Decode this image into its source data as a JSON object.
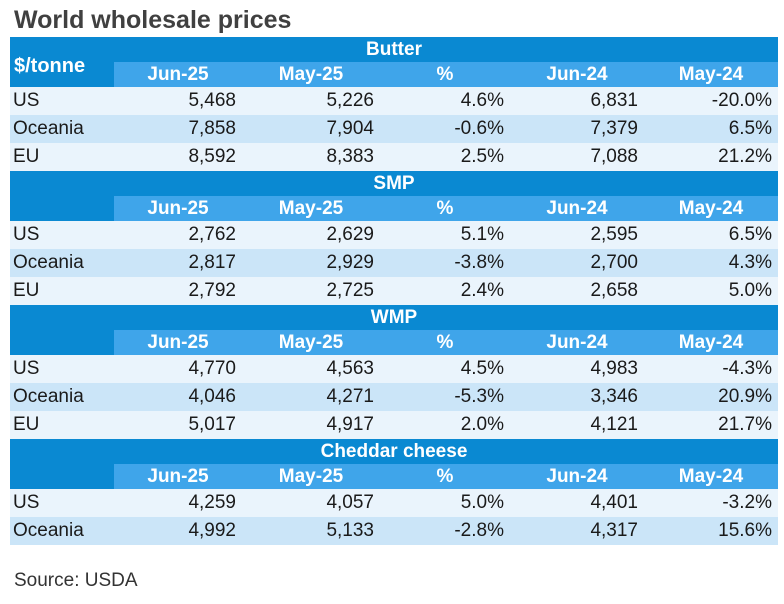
{
  "title": "World wholesale prices",
  "unit_label": "$/tonne",
  "columns": [
    "Jun-25",
    "May-25",
    "%",
    "Jun-24",
    "May-24"
  ],
  "sections": [
    {
      "name": "Butter",
      "rows": [
        {
          "region": "US",
          "values": [
            "5,468",
            "5,226",
            "4.6%",
            "6,831",
            "-20.0%"
          ]
        },
        {
          "region": "Oceania",
          "values": [
            "7,858",
            "7,904",
            "-0.6%",
            "7,379",
            "6.5%"
          ]
        },
        {
          "region": "EU",
          "values": [
            "8,592",
            "8,383",
            "2.5%",
            "7,088",
            "21.2%"
          ]
        }
      ]
    },
    {
      "name": "SMP",
      "rows": [
        {
          "region": "US",
          "values": [
            "2,762",
            "2,629",
            "5.1%",
            "2,595",
            "6.5%"
          ]
        },
        {
          "region": "Oceania",
          "values": [
            "2,817",
            "2,929",
            "-3.8%",
            "2,700",
            "4.3%"
          ]
        },
        {
          "region": "EU",
          "values": [
            "2,792",
            "2,725",
            "2.4%",
            "2,658",
            "5.0%"
          ]
        }
      ]
    },
    {
      "name": "WMP",
      "rows": [
        {
          "region": "US",
          "values": [
            "4,770",
            "4,563",
            "4.5%",
            "4,983",
            "-4.3%"
          ]
        },
        {
          "region": "Oceania",
          "values": [
            "4,046",
            "4,271",
            "-5.3%",
            "3,346",
            "20.9%"
          ]
        },
        {
          "region": "EU",
          "values": [
            "5,017",
            "4,917",
            "2.0%",
            "4,121",
            "21.7%"
          ]
        }
      ]
    },
    {
      "name": "Cheddar cheese",
      "rows": [
        {
          "region": "US",
          "values": [
            "4,259",
            "4,057",
            "5.0%",
            "4,401",
            "-3.2%"
          ]
        },
        {
          "region": "Oceania",
          "values": [
            "4,992",
            "5,133",
            "-2.8%",
            "4,317",
            "15.6%"
          ]
        }
      ]
    }
  ],
  "source": "Source: USDA"
}
